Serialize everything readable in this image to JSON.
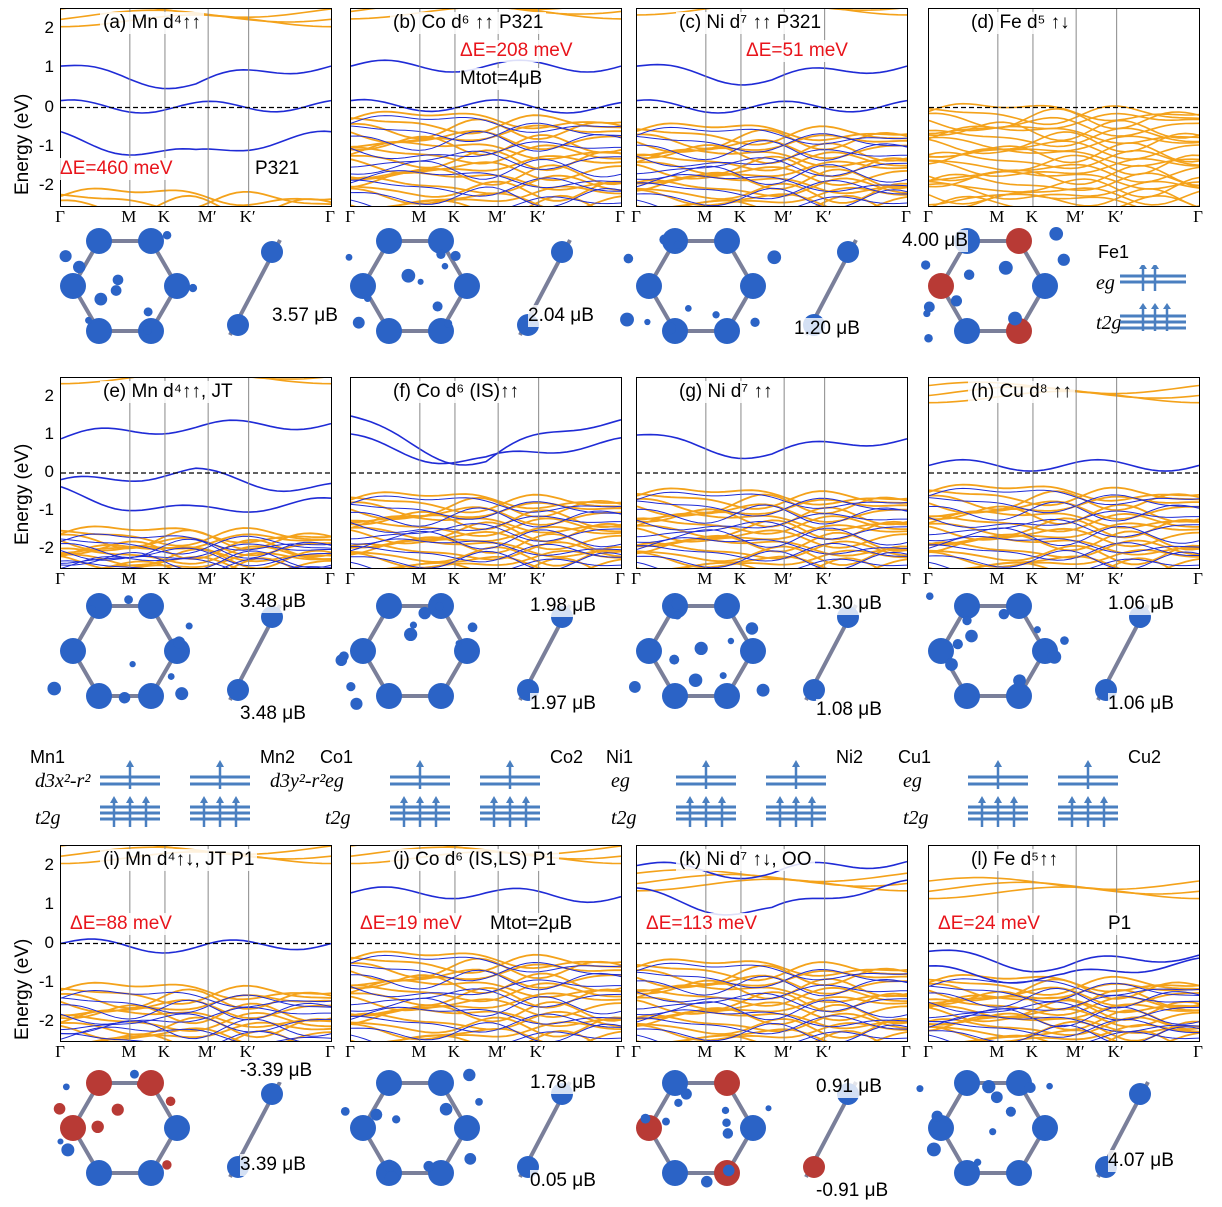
{
  "colors": {
    "spin_up": "#1f2bd6",
    "spin_down": "#f4a21a",
    "fermi": "#000000",
    "delta_e": "#e8141b",
    "atom_blue": "#2b63c6",
    "atom_red": "#b83a35"
  },
  "y_axis": {
    "label": "Energy (eV)",
    "ticks": [
      "2",
      "1",
      "0",
      "-1",
      "-2"
    ]
  },
  "k_path": [
    "Γ",
    "M",
    "K",
    "M′",
    "K′",
    "Γ"
  ],
  "panels": [
    {
      "title": "(a) Mn d⁴↑↑",
      "delta": "ΔE=460 meV",
      "extra": "P321",
      "moments": [
        "3.57 μB"
      ]
    },
    {
      "title": "(b) Co d⁶ ↑↑ P321",
      "delta": "ΔE=208 meV",
      "extra": "Mtot=4μB",
      "moments": [
        "2.04 μB"
      ]
    },
    {
      "title": "(c) Ni d⁷ ↑↑ P321",
      "delta": "ΔE=51 meV",
      "extra": "",
      "moments": [
        "1.20 μB"
      ]
    },
    {
      "title": "(d) Fe d⁵ ↑↓",
      "delta": "",
      "extra": "",
      "moments": [
        "4.00 μB"
      ],
      "site": "Fe1",
      "eg": "eg",
      "t2g": "t2g"
    },
    {
      "title": "(e) Mn d⁴↑↑, JT",
      "delta": "",
      "extra": "",
      "moments": [
        "3.48 μB",
        "3.48 μB"
      ],
      "sites": [
        "Mn1",
        "Mn2"
      ],
      "levels": [
        "d3x²-r²",
        "t2g",
        "d3y²-r²"
      ]
    },
    {
      "title": "(f) Co d⁶ (IS)↑↑",
      "delta": "",
      "extra": "",
      "moments": [
        "1.98 μB",
        "1.97 μB"
      ],
      "sites": [
        "Co1",
        "Co2"
      ],
      "levels": [
        "eg",
        "t2g"
      ]
    },
    {
      "title": "(g) Ni d⁷ ↑↑",
      "delta": "",
      "extra": "",
      "moments": [
        "1.30 μB",
        "1.08 μB"
      ],
      "sites": [
        "Ni1",
        "Ni2"
      ],
      "levels": [
        "eg",
        "t2g"
      ]
    },
    {
      "title": "(h) Cu d⁸ ↑↑",
      "delta": "",
      "extra": "",
      "moments": [
        "1.06 μB",
        "1.06 μB"
      ],
      "sites": [
        "Cu1",
        "Cu2"
      ],
      "levels": [
        "eg",
        "t2g"
      ]
    },
    {
      "title": "(i) Mn d⁴↑↓, JT P1",
      "delta": "ΔE=88 meV",
      "extra": "",
      "moments": [
        "-3.39 μB",
        "3.39 μB"
      ]
    },
    {
      "title": "(j) Co d⁶ (IS,LS) P1",
      "delta": "ΔE=19 meV",
      "extra": "Mtot=2μB",
      "moments": [
        "1.78 μB",
        "0.05 μB"
      ]
    },
    {
      "title": "(k) Ni d⁷ ↑↓, OO",
      "delta": "ΔE=113 meV",
      "extra": "",
      "moments": [
        "0.91 μB",
        "-0.91 μB"
      ]
    },
    {
      "title": "(l) Fe d⁵↑↑",
      "delta": "ΔE=24 meV",
      "extra": "P1",
      "moments": [
        "4.07 μB"
      ]
    }
  ]
}
